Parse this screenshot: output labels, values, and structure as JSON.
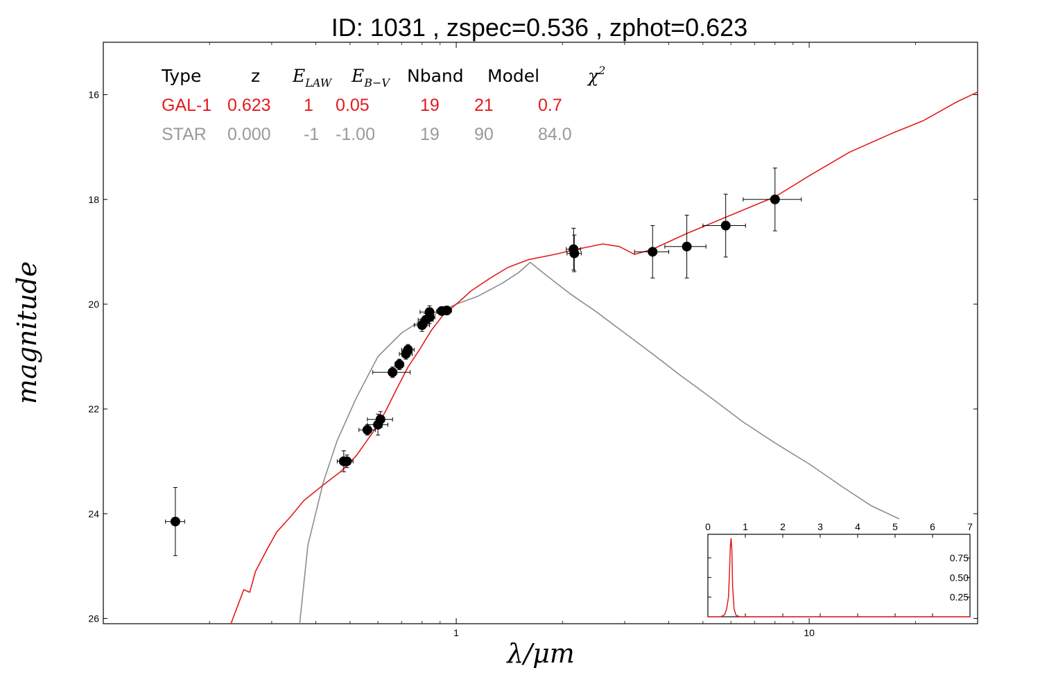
{
  "title": {
    "text": "ID:  1031  , zspec=0.536 , zphot=0.623"
  },
  "colors": {
    "galaxy": "#e31a1c",
    "star": "#8c8c8c",
    "points": "#000000",
    "axes": "#000000"
  },
  "fit_table": {
    "headers": {
      "type": "Type",
      "z": "z",
      "elaw_main": "E",
      "elaw_sub": "LAW",
      "ebv_main": "E",
      "ebv_sub": "B−V",
      "nband": "Nband",
      "model": "Model",
      "chi_main": "χ",
      "chi_sup": "2"
    },
    "rows": [
      {
        "type": "GAL-1",
        "z": "0.623",
        "elaw": "1",
        "ebv": "0.05",
        "nband": "19",
        "model": "21",
        "chi2": "0.7",
        "color": "#e31a1c"
      },
      {
        "type": "STAR",
        "z": "0.000",
        "elaw": "-1",
        "ebv": "-1.00",
        "nband": "19",
        "model": "90",
        "chi2": "84.0",
        "color": "#999999"
      }
    ]
  },
  "chart_data": [
    {
      "type": "scatter",
      "xscale": "log",
      "xlim": [
        0.1,
        30
      ],
      "ylim": [
        26.1,
        15
      ],
      "y_inverted": true,
      "xlabel": "λ/μm",
      "ylabel": "magnitude",
      "xticks": [
        1,
        10
      ],
      "xtick_labels": [
        "1",
        "10"
      ],
      "yticks": [
        16,
        18,
        20,
        22,
        24,
        26
      ],
      "ytick_labels": [
        "16",
        "18",
        "20",
        "22",
        "24",
        "26"
      ],
      "legend": "top-left table",
      "series": [
        {
          "name": "GAL-1",
          "kind": "line",
          "points": [
            [
              0.23,
              26.1
            ],
            [
              0.25,
              25.45
            ],
            [
              0.26,
              25.5
            ],
            [
              0.27,
              25.1
            ],
            [
              0.29,
              24.7
            ],
            [
              0.31,
              24.35
            ],
            [
              0.34,
              24.05
            ],
            [
              0.37,
              23.75
            ],
            [
              0.42,
              23.45
            ],
            [
              0.47,
              23.2
            ],
            [
              0.52,
              22.9
            ],
            [
              0.58,
              22.45
            ],
            [
              0.63,
              22.05
            ],
            [
              0.68,
              21.6
            ],
            [
              0.73,
              21.2
            ],
            [
              0.79,
              20.85
            ],
            [
              0.85,
              20.5
            ],
            [
              0.92,
              20.2
            ],
            [
              1.0,
              20.0
            ],
            [
              1.04,
              19.9
            ],
            [
              1.1,
              19.75
            ],
            [
              1.25,
              19.5
            ],
            [
              1.4,
              19.3
            ],
            [
              1.6,
              19.15
            ],
            [
              1.9,
              19.05
            ],
            [
              2.2,
              18.95
            ],
            [
              2.6,
              18.85
            ],
            [
              2.9,
              18.9
            ],
            [
              3.2,
              19.05
            ],
            [
              3.6,
              18.95
            ],
            [
              4.5,
              18.65
            ],
            [
              6.0,
              18.3
            ],
            [
              8.0,
              17.95
            ],
            [
              10.0,
              17.55
            ],
            [
              13.0,
              17.1
            ],
            [
              17.0,
              16.75
            ],
            [
              21.0,
              16.5
            ],
            [
              26.0,
              16.15
            ],
            [
              30.0,
              15.95
            ]
          ]
        },
        {
          "name": "STAR",
          "kind": "line",
          "points": [
            [
              0.36,
              26.1
            ],
            [
              0.38,
              24.6
            ],
            [
              0.42,
              23.4
            ],
            [
              0.46,
              22.6
            ],
            [
              0.52,
              21.8
            ],
            [
              0.6,
              21.0
            ],
            [
              0.7,
              20.55
            ],
            [
              0.8,
              20.3
            ],
            [
              0.9,
              20.15
            ],
            [
              1.0,
              20.0
            ],
            [
              1.15,
              19.85
            ],
            [
              1.35,
              19.6
            ],
            [
              1.5,
              19.4
            ],
            [
              1.62,
              19.2
            ],
            [
              1.8,
              19.45
            ],
            [
              2.1,
              19.8
            ],
            [
              2.5,
              20.15
            ],
            [
              3.0,
              20.55
            ],
            [
              3.6,
              20.95
            ],
            [
              4.3,
              21.35
            ],
            [
              5.3,
              21.8
            ],
            [
              6.5,
              22.25
            ],
            [
              8.0,
              22.65
            ],
            [
              10.0,
              23.05
            ],
            [
              12.5,
              23.5
            ],
            [
              15.0,
              23.85
            ],
            [
              18.0,
              24.1
            ]
          ]
        },
        {
          "name": "observations",
          "kind": "errorbar",
          "points": [
            {
              "x": 0.16,
              "y": 24.15,
              "xerr": 0.01,
              "yerr": 0.65
            },
            {
              "x": 0.48,
              "y": 23.0,
              "xerr": 0.02,
              "yerr": 0.2
            },
            {
              "x": 0.49,
              "y": 23.0,
              "xerr": 0.02,
              "yerr": 0.12
            },
            {
              "x": 0.56,
              "y": 22.4,
              "xerr": 0.03,
              "yerr": 0.1
            },
            {
              "x": 0.6,
              "y": 22.3,
              "xerr": 0.04,
              "yerr": 0.2
            },
            {
              "x": 0.61,
              "y": 22.2,
              "xerr": 0.05,
              "yerr": 0.15
            },
            {
              "x": 0.66,
              "y": 21.3,
              "xerr": 0.08,
              "yerr": 0.1
            },
            {
              "x": 0.69,
              "y": 21.15,
              "xerr": 0.02,
              "yerr": 0.1
            },
            {
              "x": 0.72,
              "y": 20.95,
              "xerr": 0.03,
              "yerr": 0.1
            },
            {
              "x": 0.73,
              "y": 20.87,
              "xerr": 0.03,
              "yerr": 0.1
            },
            {
              "x": 0.8,
              "y": 20.4,
              "xerr": 0.04,
              "yerr": 0.12
            },
            {
              "x": 0.82,
              "y": 20.3,
              "xerr": 0.04,
              "yerr": 0.12
            },
            {
              "x": 0.84,
              "y": 20.25,
              "xerr": 0.03,
              "yerr": 0.12
            },
            {
              "x": 0.84,
              "y": 20.15,
              "xerr": 0.05,
              "yerr": 0.12
            },
            {
              "x": 0.91,
              "y": 20.13,
              "xerr": 0.03,
              "yerr": 0.08
            },
            {
              "x": 0.94,
              "y": 20.12,
              "xerr": 0.03,
              "yerr": 0.08
            },
            {
              "x": 2.15,
              "y": 18.95,
              "xerr": 0.1,
              "yerr": 0.4
            },
            {
              "x": 2.16,
              "y": 19.03,
              "xerr": 0.1,
              "yerr": 0.35
            },
            {
              "x": 3.6,
              "y": 19.0,
              "xerr": 0.4,
              "yerr": 0.5
            },
            {
              "x": 4.5,
              "y": 18.9,
              "xerr": 0.6,
              "yerr": 0.6
            },
            {
              "x": 5.8,
              "y": 18.5,
              "xerr": 0.8,
              "yerr": 0.6
            },
            {
              "x": 8.0,
              "y": 18.0,
              "xerr": 1.5,
              "yerr": 0.6
            }
          ]
        }
      ]
    },
    {
      "type": "line",
      "role": "inset",
      "xlim": [
        0,
        7
      ],
      "ylim": [
        0,
        1.05
      ],
      "xticks": [
        0,
        1,
        2,
        3,
        4,
        5,
        6,
        7
      ],
      "xtick_labels": [
        "0",
        "1",
        "2",
        "3",
        "4",
        "5",
        "6",
        "7"
      ],
      "yticks": [
        0.25,
        0.5,
        0.75
      ],
      "ytick_labels": [
        "0.25",
        "0.50",
        "0.75"
      ],
      "xaxis_position": "top",
      "yaxis_position": "right",
      "series": [
        {
          "name": "PDZ",
          "points": [
            [
              0,
              0
            ],
            [
              0.35,
              0
            ],
            [
              0.45,
              0.03
            ],
            [
              0.5,
              0.1
            ],
            [
              0.55,
              0.25
            ],
            [
              0.58,
              0.6
            ],
            [
              0.6,
              0.9
            ],
            [
              0.62,
              1.0
            ],
            [
              0.64,
              0.85
            ],
            [
              0.66,
              0.4
            ],
            [
              0.7,
              0.1
            ],
            [
              0.75,
              0.02
            ],
            [
              0.85,
              0
            ],
            [
              7,
              0
            ]
          ]
        }
      ]
    }
  ]
}
